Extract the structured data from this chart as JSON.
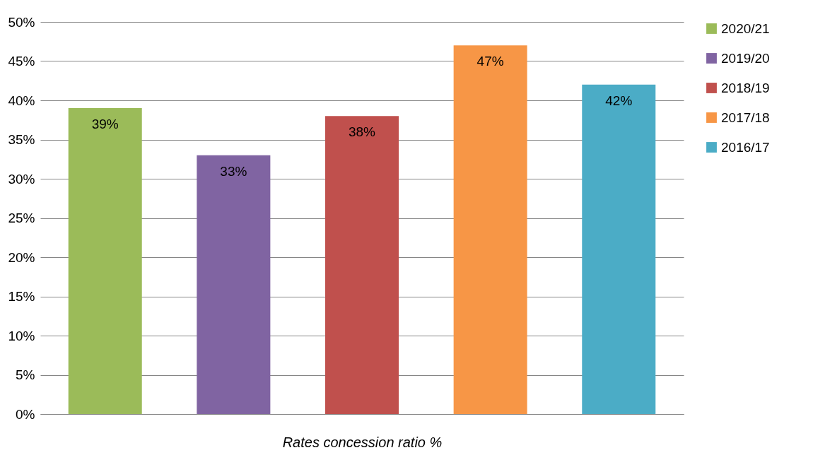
{
  "chart_data": {
    "type": "bar",
    "xlabel": "Rates concession ratio %",
    "categories": [
      null,
      null,
      null,
      null,
      null
    ],
    "series": [
      {
        "name": "2020/21",
        "color": "#9bbb59",
        "values": [
          39,
          null,
          null,
          null,
          null
        ],
        "value_labels": [
          "39%",
          null,
          null,
          null,
          null
        ]
      },
      {
        "name": "2019/20",
        "color": "#8064a2",
        "values": [
          null,
          33,
          null,
          null,
          null
        ],
        "value_labels": [
          null,
          "33%",
          null,
          null,
          null
        ]
      },
      {
        "name": "2018/19",
        "color": "#c0504d",
        "values": [
          null,
          null,
          38,
          null,
          null
        ],
        "value_labels": [
          null,
          null,
          "38%",
          null,
          null
        ]
      },
      {
        "name": "2017/18",
        "color": "#f79646",
        "values": [
          null,
          null,
          null,
          47,
          null
        ],
        "value_labels": [
          null,
          null,
          null,
          "47%",
          null
        ]
      },
      {
        "name": "2016/17",
        "color": "#4bacc6",
        "values": [
          null,
          null,
          null,
          null,
          42
        ],
        "value_labels": [
          null,
          null,
          null,
          null,
          "42%"
        ]
      }
    ],
    "ylim": [
      0,
      50
    ],
    "yticks": [
      {
        "value": 0,
        "label": "0%"
      },
      {
        "value": 5,
        "label": "5%"
      },
      {
        "value": 10,
        "label": "10%"
      },
      {
        "value": 15,
        "label": "15%"
      },
      {
        "value": 20,
        "label": "20%"
      },
      {
        "value": 25,
        "label": "25%"
      },
      {
        "value": 30,
        "label": "30%"
      },
      {
        "value": 35,
        "label": "35%"
      },
      {
        "value": 40,
        "label": "40%"
      },
      {
        "value": 45,
        "label": "45%"
      },
      {
        "value": 50,
        "label": "50%"
      }
    ],
    "grid": "y",
    "legend": "right",
    "tick_labels": "y"
  }
}
